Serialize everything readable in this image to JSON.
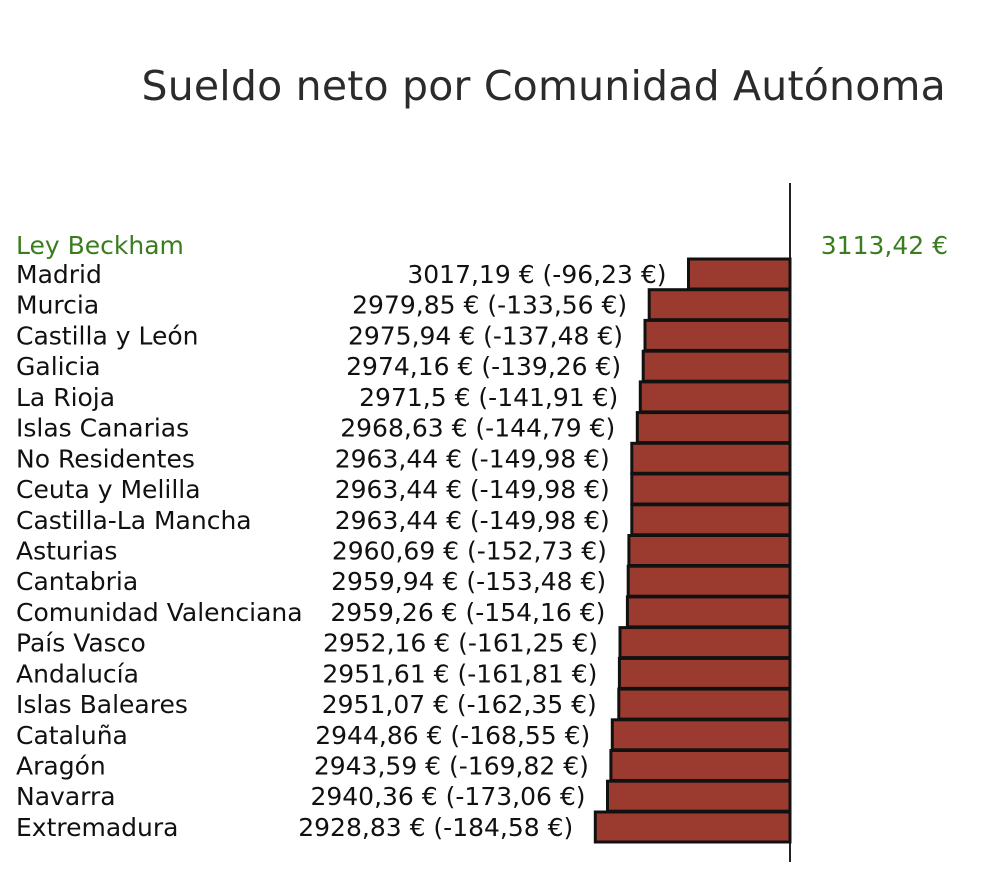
{
  "chart_data": {
    "type": "bar",
    "orientation": "horizontal",
    "title": "Sueldo neto por Comunidad Autónoma",
    "reference": {
      "label": "Ley Beckham",
      "value": 3113.42,
      "value_label": "3113,42 €",
      "color": "#3a7d1f"
    },
    "categories": [
      "Madrid",
      "Murcia",
      "Castilla y León",
      "Galicia",
      "La Rioja",
      "Islas Canarias",
      "No Residentes",
      "Ceuta y Melilla",
      "Castilla-La Mancha",
      "Asturias",
      "Cantabria",
      "Comunidad Valenciana",
      "País Vasco",
      "Andalucía",
      "Islas Baleares",
      "Cataluña",
      "Aragón",
      "Navarra",
      "Extremadura"
    ],
    "values": [
      3017.19,
      2979.85,
      2975.94,
      2974.16,
      2971.5,
      2968.63,
      2963.44,
      2963.44,
      2963.44,
      2960.69,
      2959.94,
      2959.26,
      2952.16,
      2951.61,
      2951.07,
      2944.86,
      2943.59,
      2940.36,
      2928.83
    ],
    "differences": [
      -96.23,
      -133.56,
      -137.48,
      -139.26,
      -141.91,
      -144.79,
      -149.98,
      -149.98,
      -149.98,
      -152.73,
      -153.48,
      -154.16,
      -161.25,
      -161.81,
      -162.35,
      -168.55,
      -169.82,
      -173.06,
      -184.58
    ],
    "value_labels": [
      "3017,19 € (-96,23 €)",
      "2979,85 € (-133,56 €)",
      "2975,94 € (-137,48 €)",
      "2974,16 € (-139,26 €)",
      "2971,5 € (-141,91 €)",
      "2968,63 € (-144,79 €)",
      "2963,44 € (-149,98 €)",
      "2963,44 € (-149,98 €)",
      "2963,44 € (-149,98 €)",
      "2960,69 € (-152,73 €)",
      "2959,94 € (-153,48 €)",
      "2959,26 € (-154,16 €)",
      "2952,16 € (-161,25 €)",
      "2951,61 € (-161,81 €)",
      "2951,07 € (-162,35 €)",
      "2944,86 € (-168,55 €)",
      "2943,59 € (-169,82 €)",
      "2940,36 € (-173,06 €)",
      "2928,83 € (-184,58 €)"
    ],
    "bar_color": "#9b3a2f",
    "bar_stroke": "#111111",
    "xlabel": "",
    "ylabel": ""
  }
}
